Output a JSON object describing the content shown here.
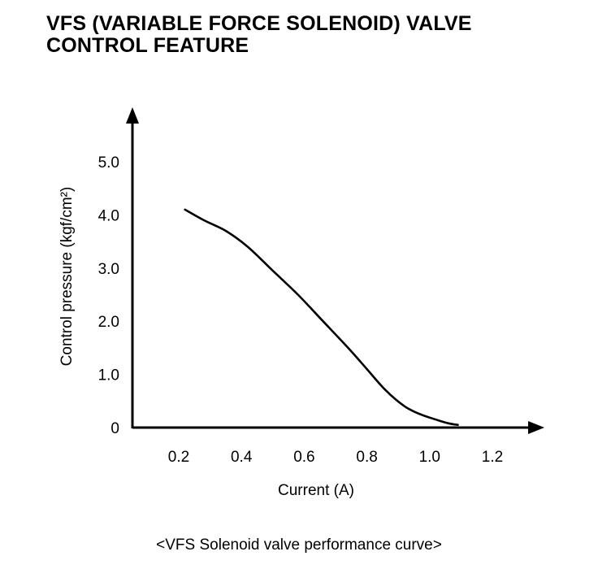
{
  "title": {
    "line1": "VFS (VARIABLE FORCE SOLENOID) VALVE",
    "line2": "CONTROL FEATURE"
  },
  "caption": "<VFS Solenoid valve performance curve>",
  "chart_data": {
    "type": "line",
    "title": "VFS (VARIABLE FORCE SOLENOID) VALVE CONTROL FEATURE",
    "xlabel": "Current  (A)",
    "ylabel": "Control pressure  (kgf/cm²)",
    "xlim": [
      0.05,
      1.35
    ],
    "ylim": [
      -0.1,
      6.0
    ],
    "x_ticks": [
      "0.2",
      "0.4",
      "0.6",
      "0.8",
      "1.0",
      "1.2"
    ],
    "y_ticks": [
      "0",
      "1.0",
      "2.0",
      "3.0",
      "4.0",
      "5.0"
    ],
    "grid": false,
    "legend": "none",
    "series": [
      {
        "x": [
          0.22,
          0.28,
          0.35,
          0.42,
          0.5,
          0.58,
          0.66,
          0.74,
          0.8,
          0.86,
          0.92,
          0.97,
          1.02,
          1.06,
          1.09
        ],
        "y": [
          4.1,
          3.9,
          3.7,
          3.4,
          2.95,
          2.5,
          2.0,
          1.5,
          1.1,
          0.7,
          0.4,
          0.25,
          0.15,
          0.08,
          0.05
        ]
      }
    ]
  }
}
